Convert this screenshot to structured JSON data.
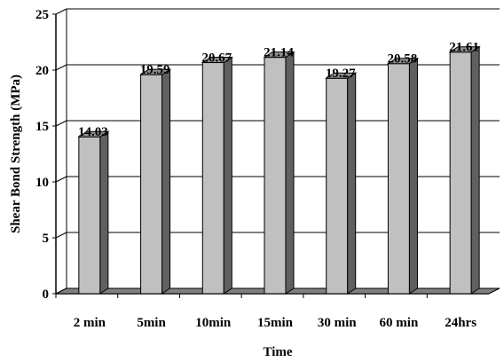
{
  "chart_data": {
    "type": "bar",
    "style": "3d-column",
    "categories": [
      "2 min",
      "5min",
      "10min",
      "15min",
      "30 min",
      "60 min",
      "24hrs"
    ],
    "values": [
      14.03,
      19.59,
      20.67,
      21.14,
      19.27,
      20.58,
      21.61
    ],
    "data_labels": [
      "14.03",
      "19.59",
      "20.67",
      "21.14",
      "19.27",
      "20.58",
      "21.61"
    ],
    "xlabel": "Time",
    "ylabel": "Shear Bond Strength (MPa)",
    "ylim": [
      0,
      25
    ],
    "yticks": [
      "0",
      "5",
      "10",
      "15",
      "20",
      "25"
    ],
    "grid": true,
    "legend": "none",
    "colors": {
      "bar_front": "#c0c0c0",
      "bar_side": "#606060",
      "bar_top": "#909090",
      "floor": "#808080",
      "grid": "#000000"
    }
  }
}
